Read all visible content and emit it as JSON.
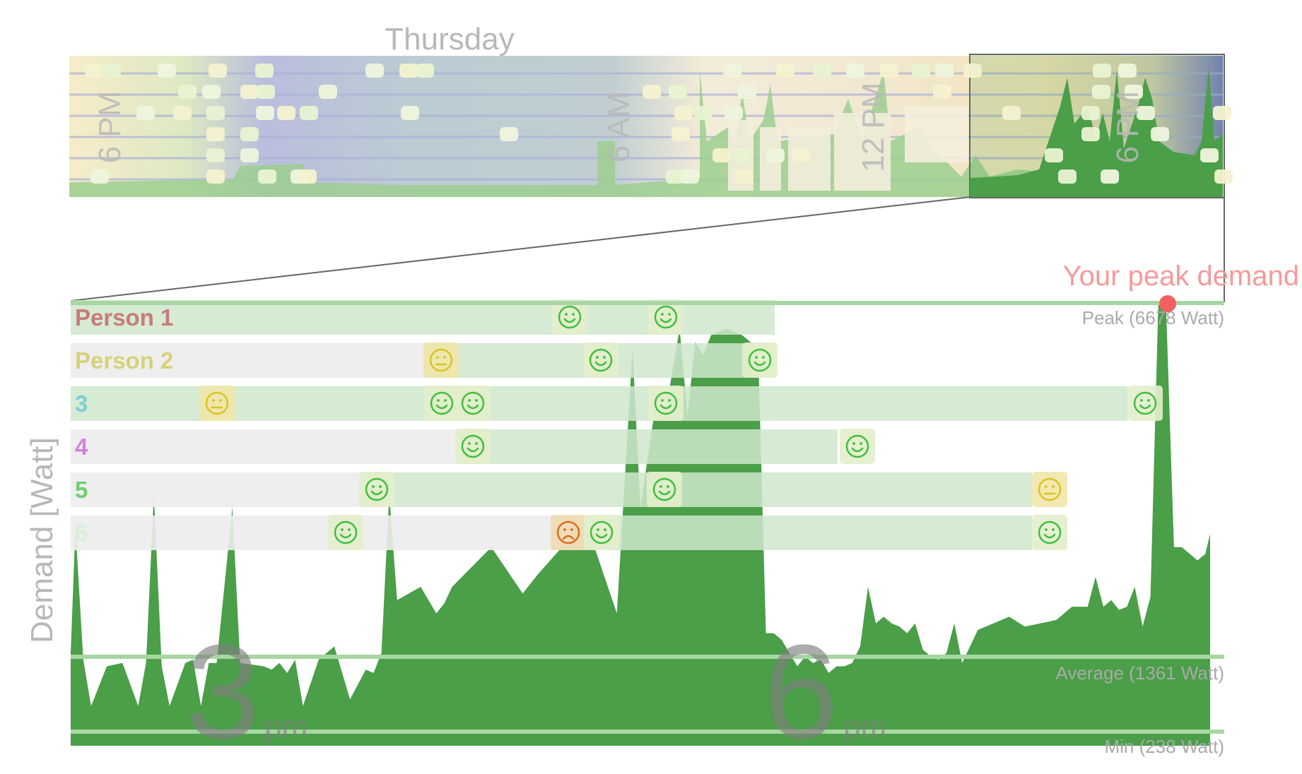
{
  "overview": {
    "day_label": "Thursday",
    "time_labels": [
      "6 PM",
      "6 AM",
      "12 PM",
      "6 PM"
    ]
  },
  "axis": {
    "ylabel": "Demand [Watt]",
    "hour_labels": [
      {
        "hour": "3",
        "suffix": "pm"
      },
      {
        "hour": "6",
        "suffix": "pm"
      }
    ]
  },
  "annotations": {
    "peak_callout": "Your peak demand",
    "peak": "Peak (6678 Watt)",
    "average": "Average (1361 Watt)",
    "min": "Min (238 Watt)"
  },
  "colors": {
    "demand_fill": "#4a9f48",
    "reference_line": "#a8d6a2",
    "peak_marker": "#f26060",
    "peak_text": "#f79a9a",
    "band_present": "#cfe6cc",
    "band_absent": "#ececec",
    "face_happy": "#3fbf3f",
    "face_neutral": "#dcc21f",
    "face_sad": "#e06a20"
  },
  "chart_data": {
    "type": "area",
    "title": "",
    "ylabel": "Demand [Watt]",
    "x_unit": "hour of day (zoomed window)",
    "xlim": [
      13.22,
      20.48
    ],
    "ylim": [
      0,
      6678
    ],
    "reference_lines": [
      {
        "label": "Peak (6678 Watt)",
        "value": 6678
      },
      {
        "label": "Average (1361 Watt)",
        "value": 1361
      },
      {
        "label": "Min (238 Watt)",
        "value": 238
      }
    ],
    "x": [
      13.22,
      13.25,
      13.3,
      13.35,
      13.45,
      13.55,
      13.65,
      13.7,
      13.75,
      13.8,
      13.85,
      13.95,
      14.0,
      14.05,
      14.1,
      14.15,
      14.25,
      14.3,
      14.45,
      14.5,
      14.55,
      14.6,
      14.65,
      14.7,
      14.8,
      14.9,
      15.0,
      15.1,
      15.15,
      15.2,
      15.25,
      15.3,
      15.45,
      15.5,
      15.55,
      15.6,
      15.65,
      15.9,
      16.1,
      16.2,
      16.5,
      16.7,
      16.8,
      16.85,
      16.95,
      17.0,
      17.1,
      17.15,
      17.2,
      17.25,
      17.3,
      17.4,
      17.5,
      17.6,
      17.65,
      17.7,
      17.75,
      17.8,
      17.85,
      17.9,
      17.95,
      18.0,
      18.05,
      18.1,
      18.15,
      18.2,
      18.25,
      18.3,
      18.35,
      18.4,
      18.45,
      18.5,
      18.55,
      18.6,
      18.65,
      18.7,
      18.75,
      18.8,
      18.85,
      18.9,
      19.0,
      19.1,
      19.2,
      19.3,
      19.4,
      19.5,
      19.6,
      19.7,
      19.75,
      19.8,
      19.85,
      19.9,
      19.95,
      20.0,
      20.05,
      20.1,
      20.15,
      20.2,
      20.25,
      20.3,
      20.35,
      20.4,
      20.45,
      20.48
    ],
    "y": [
      1400,
      3300,
      1300,
      600,
      1200,
      1250,
      600,
      1250,
      3800,
      1200,
      600,
      1250,
      1300,
      600,
      1250,
      1250,
      3600,
      1250,
      1200,
      1150,
      1250,
      1100,
      1300,
      600,
      1300,
      1500,
      700,
      1150,
      1100,
      1400,
      3800,
      2200,
      2400,
      2200,
      2000,
      2150,
      2400,
      3000,
      2300,
      2600,
      3400,
      2000,
      6000,
      3600,
      5200,
      4900,
      6300,
      5000,
      6100,
      5900,
      6200,
      6300,
      6200,
      6000,
      1700,
      1700,
      1600,
      1400,
      1200,
      1350,
      1250,
      1300,
      1100,
      1200,
      1200,
      1250,
      1500,
      2400,
      1850,
      1950,
      1850,
      1800,
      1700,
      1850,
      1450,
      1350,
      1300,
      1400,
      1850,
      1250,
      1750,
      1850,
      1950,
      1800,
      1850,
      1900,
      2100,
      2100,
      2550,
      2100,
      2200,
      2050,
      2100,
      2400,
      1800,
      2250,
      6678,
      6600,
      3000,
      3000,
      2900,
      2800,
      2900,
      3200
    ]
  },
  "activity_rows": [
    {
      "label": "Person 1",
      "faces": [
        "happy",
        "happy"
      ]
    },
    {
      "label": "Person 2",
      "faces": [
        "neutral",
        "happy",
        "happy"
      ]
    },
    {
      "label": "3",
      "faces": [
        "neutral",
        "happy",
        "happy",
        "happy",
        "happy"
      ]
    },
    {
      "label": "4",
      "faces": [
        "happy",
        "happy"
      ]
    },
    {
      "label": "5",
      "faces": [
        "happy",
        "happy",
        "neutral"
      ]
    },
    {
      "label": "6",
      "faces": [
        "happy",
        "sad",
        "happy",
        "happy"
      ]
    }
  ]
}
